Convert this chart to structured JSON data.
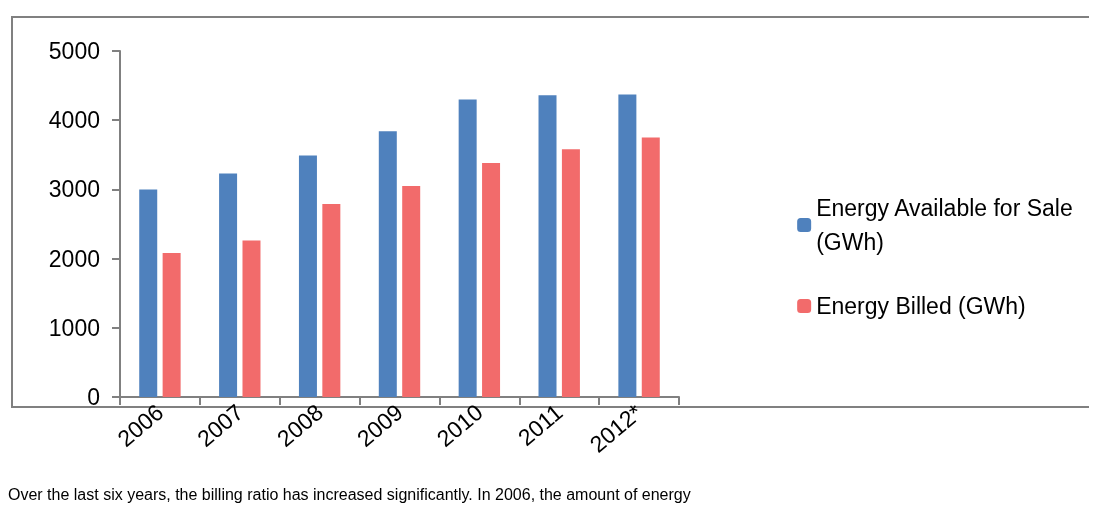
{
  "chart_data": {
    "type": "bar",
    "categories": [
      "2006",
      "2007",
      "2008",
      "2009",
      "2010",
      "2011",
      "2012*"
    ],
    "series": [
      {
        "name": "Energy Available for Sale (GWh)",
        "color": "#4f81bd",
        "values": [
          3000,
          3230,
          3490,
          3840,
          4300,
          4360,
          4370
        ]
      },
      {
        "name": "Energy Billed (GWh)",
        "color": "#f26b6b",
        "values": [
          2080,
          2260,
          2790,
          3050,
          3380,
          3580,
          3750
        ]
      }
    ],
    "ylim": [
      0,
      5000
    ],
    "yticks": [
      0,
      1000,
      2000,
      3000,
      4000,
      5000
    ],
    "grid": false,
    "legend": "right",
    "annotations": [
      "Over the last six years, the billing ratio has increased significantly. In 2006, the amount of energy"
    ]
  }
}
